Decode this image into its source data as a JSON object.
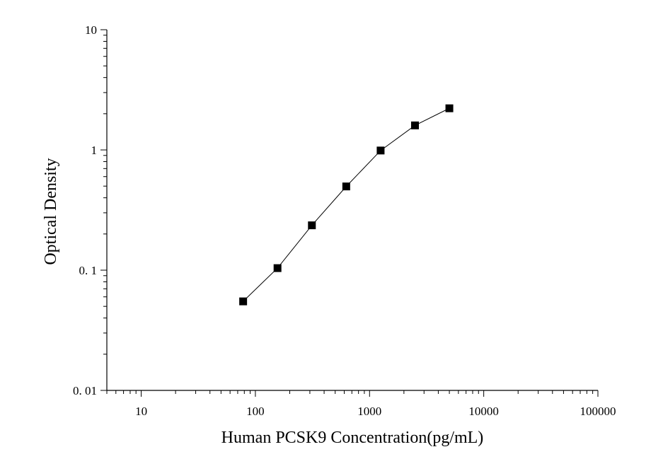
{
  "chart_data": {
    "type": "scatter",
    "title": "",
    "xlabel": "Human PCSK9 Concentration(pg/mL)",
    "ylabel": "Optical Density",
    "x_scale": "log",
    "y_scale": "log",
    "xlim": [
      5,
      100000
    ],
    "ylim": [
      0.01,
      10
    ],
    "x_ticks": [
      {
        "value": 10,
        "label": "10"
      },
      {
        "value": 100,
        "label": "100"
      },
      {
        "value": 1000,
        "label": "1000"
      },
      {
        "value": 10000,
        "label": "10000"
      },
      {
        "value": 100000,
        "label": "100000"
      }
    ],
    "y_ticks": [
      {
        "value": 0.01,
        "label": "0. 01"
      },
      {
        "value": 0.1,
        "label": "0. 1"
      },
      {
        "value": 1,
        "label": "1"
      },
      {
        "value": 10,
        "label": "10"
      }
    ],
    "grid": false,
    "legend": "none",
    "series": [
      {
        "marker": "square",
        "line": "connected",
        "color": "#000000",
        "x": [
          78.125,
          156.25,
          312.5,
          625,
          1250,
          2500,
          5000
        ],
        "y": [
          0.055,
          0.104,
          0.236,
          0.497,
          0.989,
          1.6,
          2.22
        ]
      }
    ]
  }
}
